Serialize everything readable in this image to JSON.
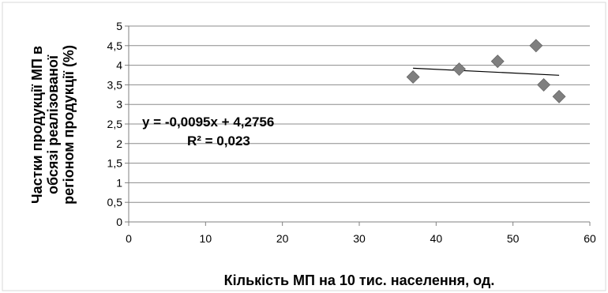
{
  "chart_data": {
    "type": "scatter",
    "title": "",
    "xlabel": "Кількість МП на 10 тис. населення, од.",
    "ylabel_lines": [
      "Частки продукції МП в",
      "обсязі реалізованої",
      "регіоном продукції (%)"
    ],
    "xlim": [
      0,
      60
    ],
    "ylim": [
      0,
      5
    ],
    "x_ticks": [
      "0",
      "10",
      "20",
      "30",
      "40",
      "50",
      "60"
    ],
    "y_ticks": [
      "0",
      "0,5",
      "1",
      "1,5",
      "2",
      "2,5",
      "3",
      "3,5",
      "4",
      "4,5",
      "5"
    ],
    "grid": "horizontal",
    "marker": "diamond",
    "marker_color": "#7f7f7f",
    "series": [
      {
        "points": [
          {
            "x": 37,
            "y": 3.7
          },
          {
            "x": 43,
            "y": 3.9
          },
          {
            "x": 48,
            "y": 4.1
          },
          {
            "x": 53,
            "y": 4.5
          },
          {
            "x": 54,
            "y": 3.5
          },
          {
            "x": 56,
            "y": 3.2
          }
        ]
      }
    ],
    "trendline": {
      "type": "linear",
      "slope": -0.0095,
      "intercept": 4.2756,
      "x_range": [
        37,
        56
      ],
      "equation": "y = -0,0095x + 4,2756",
      "r_squared": "R² = 0,023"
    }
  }
}
